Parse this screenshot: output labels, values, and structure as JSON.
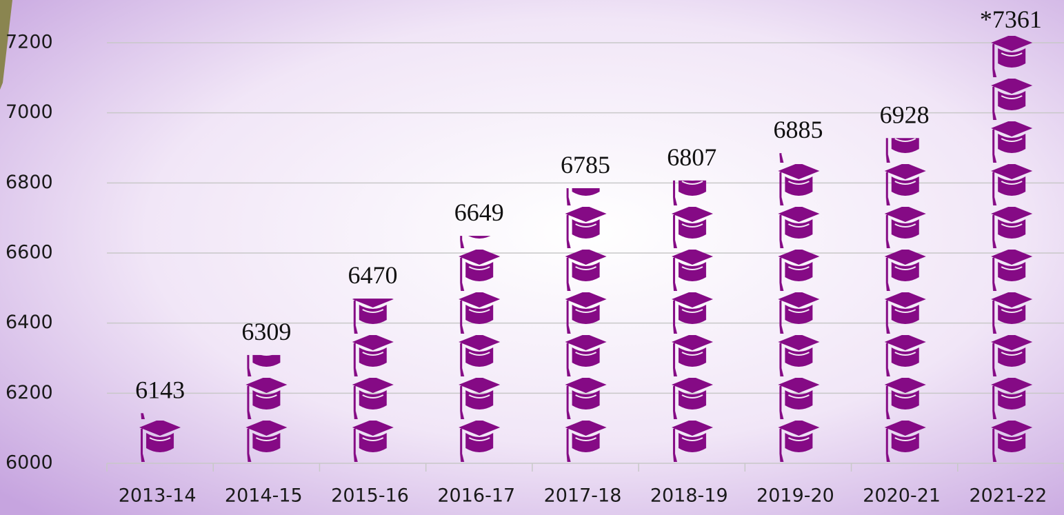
{
  "chart_data": {
    "type": "pictograph",
    "categories": [
      "2013-14",
      "2014-15",
      "2015-16",
      "2016-17",
      "2017-18",
      "2018-19",
      "2019-20",
      "2020-21",
      "2021-22"
    ],
    "values": [
      6143,
      6309,
      6470,
      6649,
      6785,
      6807,
      6885,
      6928,
      7361
    ],
    "value_labels": [
      "6143",
      "6309",
      "6470",
      "6649",
      "6785",
      "6807",
      "6885",
      "6928",
      "*7361"
    ],
    "color": "#850a85",
    "ylim": [
      6000,
      7200
    ],
    "yticks": [
      6000,
      6200,
      6400,
      6600,
      6800,
      7000,
      7200
    ],
    "grid": true
  }
}
